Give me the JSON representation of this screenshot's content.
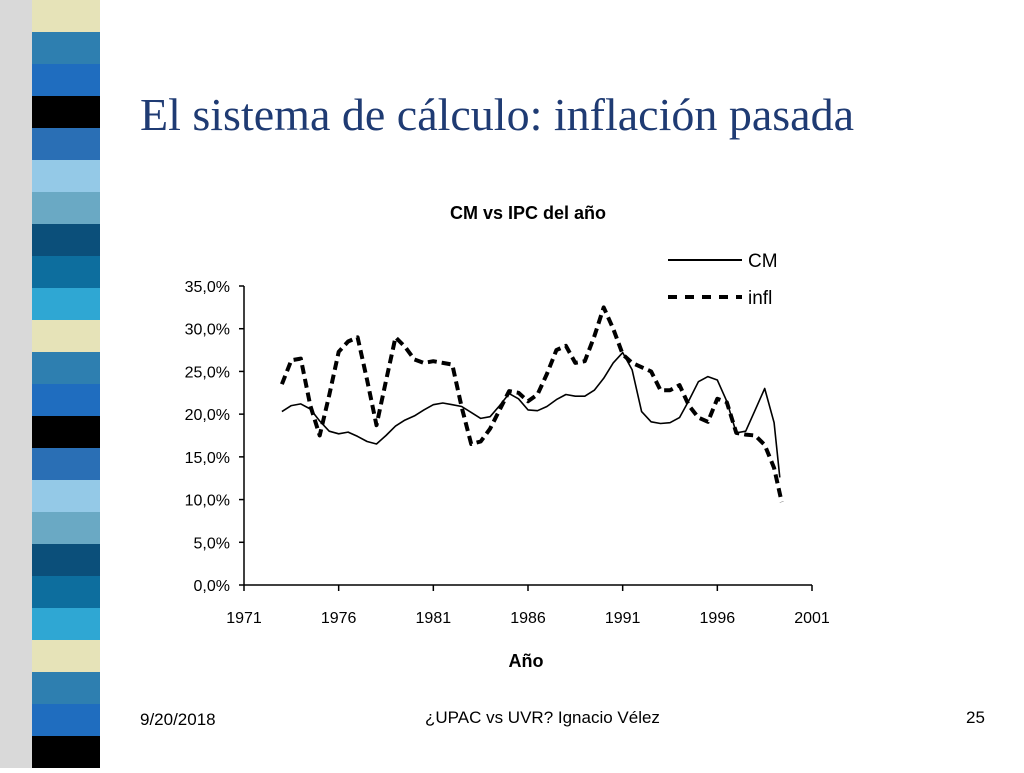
{
  "slide": {
    "title": "El sistema de cálculo: inflación pasada",
    "footer_date": "9/20/2018",
    "footer_center": "¿UPAC vs UVR? Ignacio Vélez",
    "page_number": "25"
  },
  "colors": {
    "title": "#1f3b73",
    "strip_colors": [
      "#2e7fb0",
      "#2a6fb5",
      "#0b4f7a",
      "#e6e3b8",
      "#000000",
      "#6aa9c4",
      "#2fa7d3",
      "#1f6dbf",
      "#94c9e7",
      "#0d6e9e"
    ]
  },
  "chart_data": {
    "type": "line",
    "title": "CM vs IPC del año",
    "xlabel": "Año",
    "ylabel": "",
    "xlim": [
      1971,
      2001
    ],
    "ylim": [
      0,
      35
    ],
    "x_ticks": [
      "1971",
      "1976",
      "1981",
      "1986",
      "1991",
      "1996",
      "2001"
    ],
    "y_ticks": [
      "0,0%",
      "5,0%",
      "10,0%",
      "15,0%",
      "20,0%",
      "25,0%",
      "30,0%",
      "35,0%"
    ],
    "legend_position": "top-right",
    "series": [
      {
        "name": "CM",
        "style": "solid",
        "x": [
          1973.0,
          1973.5,
          1974.0,
          1974.5,
          1975.0,
          1975.5,
          1976.0,
          1976.5,
          1977.0,
          1977.5,
          1978.0,
          1978.5,
          1979.0,
          1979.5,
          1980.0,
          1980.5,
          1981.0,
          1981.5,
          1982.0,
          1982.5,
          1983.0,
          1983.5,
          1984.0,
          1984.5,
          1985.0,
          1985.5,
          1986.0,
          1986.5,
          1987.0,
          1987.5,
          1988.0,
          1988.5,
          1989.0,
          1989.5,
          1990.0,
          1990.5,
          1991.0,
          1991.5,
          1992.0,
          1992.5,
          1993.0,
          1993.5,
          1994.0,
          1994.5,
          1995.0,
          1995.5,
          1996.0,
          1996.5,
          1997.0,
          1997.5,
          1998.0,
          1998.5,
          1999.0,
          1999.3
        ],
        "y": [
          20.3,
          21.0,
          21.2,
          20.6,
          19.2,
          18.0,
          17.7,
          17.9,
          17.4,
          16.8,
          16.5,
          17.5,
          18.6,
          19.3,
          19.8,
          20.5,
          21.1,
          21.3,
          21.1,
          20.9,
          20.2,
          19.5,
          19.7,
          21.0,
          22.4,
          21.8,
          20.5,
          20.4,
          20.9,
          21.7,
          22.3,
          22.1,
          22.1,
          22.8,
          24.2,
          26.0,
          27.2,
          25.2,
          20.3,
          19.1,
          18.9,
          19.0,
          19.6,
          21.6,
          23.8,
          24.4,
          24.0,
          21.5,
          17.8,
          18.0,
          20.5,
          23.0,
          19.0,
          12.6
        ]
      },
      {
        "name": "infl",
        "style": "dashed",
        "x": [
          1973.0,
          1973.5,
          1974.0,
          1974.5,
          1975.0,
          1975.5,
          1976.0,
          1976.5,
          1977.0,
          1977.5,
          1978.0,
          1978.5,
          1979.0,
          1979.5,
          1980.0,
          1980.5,
          1981.0,
          1981.5,
          1982.0,
          1982.5,
          1983.0,
          1983.5,
          1984.0,
          1984.5,
          1985.0,
          1985.5,
          1986.0,
          1986.5,
          1987.0,
          1987.5,
          1988.0,
          1988.5,
          1989.0,
          1989.5,
          1990.0,
          1990.5,
          1991.0,
          1991.5,
          1992.0,
          1992.5,
          1993.0,
          1993.5,
          1994.0,
          1994.5,
          1995.0,
          1995.5,
          1996.0,
          1996.5,
          1997.0,
          1997.5,
          1998.0,
          1998.5,
          1999.0,
          1999.4
        ],
        "y": [
          23.5,
          26.3,
          26.5,
          21.0,
          17.5,
          22.2,
          27.3,
          28.5,
          29.0,
          24.0,
          18.7,
          23.9,
          29.0,
          27.9,
          26.4,
          26.0,
          26.2,
          26.0,
          25.8,
          20.8,
          16.5,
          16.8,
          18.3,
          20.5,
          22.7,
          22.5,
          21.5,
          22.3,
          24.7,
          27.5,
          28.0,
          26.0,
          26.2,
          29.1,
          32.5,
          30.0,
          27.0,
          26.0,
          25.5,
          25.0,
          22.8,
          22.8,
          23.4,
          21.0,
          19.6,
          19.1,
          21.8,
          21.4,
          17.8,
          17.6,
          17.5,
          16.4,
          13.7,
          9.7
        ]
      }
    ]
  }
}
